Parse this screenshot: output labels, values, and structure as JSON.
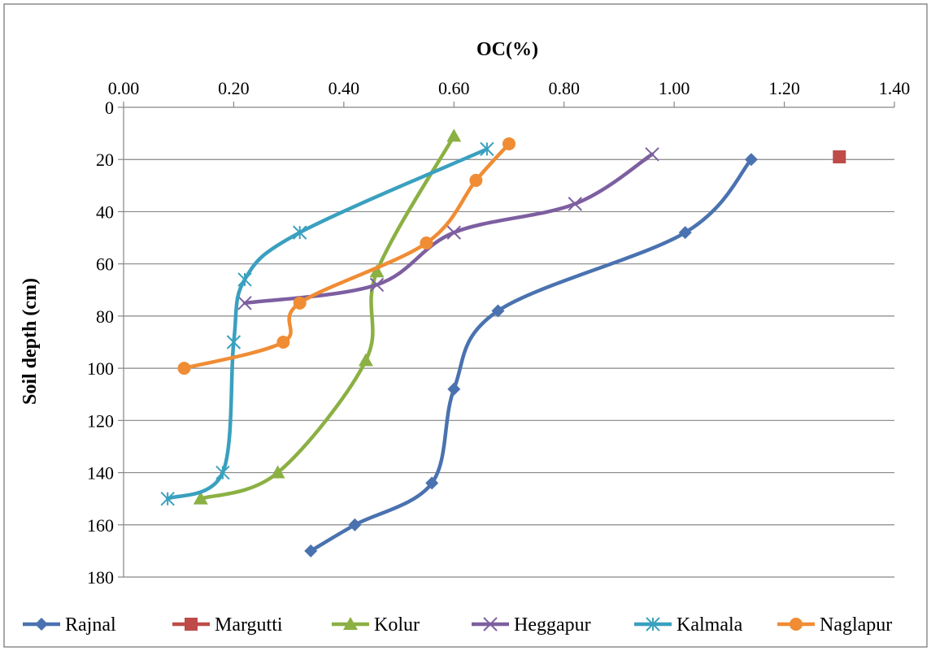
{
  "chart_data": {
    "type": "line",
    "xlabel": "OC(%)",
    "ylabel": "Soil depth (cm)",
    "x_axis_position": "top",
    "y_axis_reversed": true,
    "xlim": [
      0,
      1.4
    ],
    "ylim": [
      0,
      180
    ],
    "xticks": [
      "0.00",
      "0.20",
      "0.40",
      "0.60",
      "0.80",
      "1.00",
      "1.20",
      "1.40"
    ],
    "yticks": [
      "0",
      "20",
      "40",
      "60",
      "80",
      "100",
      "120",
      "140",
      "160",
      "180"
    ],
    "grid": "horizontal",
    "legend_position": "bottom",
    "smooth": true,
    "series": [
      {
        "name": "Rajnal",
        "color": "#4a72b0",
        "marker": "diamond",
        "points": [
          [
            1.14,
            20
          ],
          [
            1.02,
            48
          ],
          [
            0.68,
            78
          ],
          [
            0.6,
            108
          ],
          [
            0.56,
            144
          ],
          [
            0.42,
            160
          ],
          [
            0.34,
            170
          ]
        ]
      },
      {
        "name": "Margutti",
        "color": "#be4b48",
        "marker": "square",
        "points": [
          [
            1.3,
            19
          ]
        ]
      },
      {
        "name": "Kolur",
        "color": "#8bb043",
        "marker": "triangle",
        "points": [
          [
            0.6,
            11
          ],
          [
            0.46,
            63
          ],
          [
            0.44,
            97
          ],
          [
            0.28,
            140
          ],
          [
            0.14,
            150
          ]
        ]
      },
      {
        "name": "Heggapur",
        "color": "#7d5fa0",
        "marker": "x",
        "points": [
          [
            0.96,
            18
          ],
          [
            0.82,
            37
          ],
          [
            0.6,
            48
          ],
          [
            0.46,
            68
          ],
          [
            0.22,
            75
          ]
        ]
      },
      {
        "name": "Kalmala",
        "color": "#3aa0bf",
        "marker": "star",
        "points": [
          [
            0.66,
            16
          ],
          [
            0.32,
            48
          ],
          [
            0.22,
            66
          ],
          [
            0.2,
            90
          ],
          [
            0.18,
            140
          ],
          [
            0.08,
            150
          ]
        ]
      },
      {
        "name": "Naglapur",
        "color": "#f08c34",
        "marker": "circle",
        "points": [
          [
            0.7,
            14
          ],
          [
            0.64,
            28
          ],
          [
            0.55,
            52
          ],
          [
            0.32,
            75
          ],
          [
            0.29,
            90
          ],
          [
            0.11,
            100
          ]
        ]
      }
    ]
  }
}
